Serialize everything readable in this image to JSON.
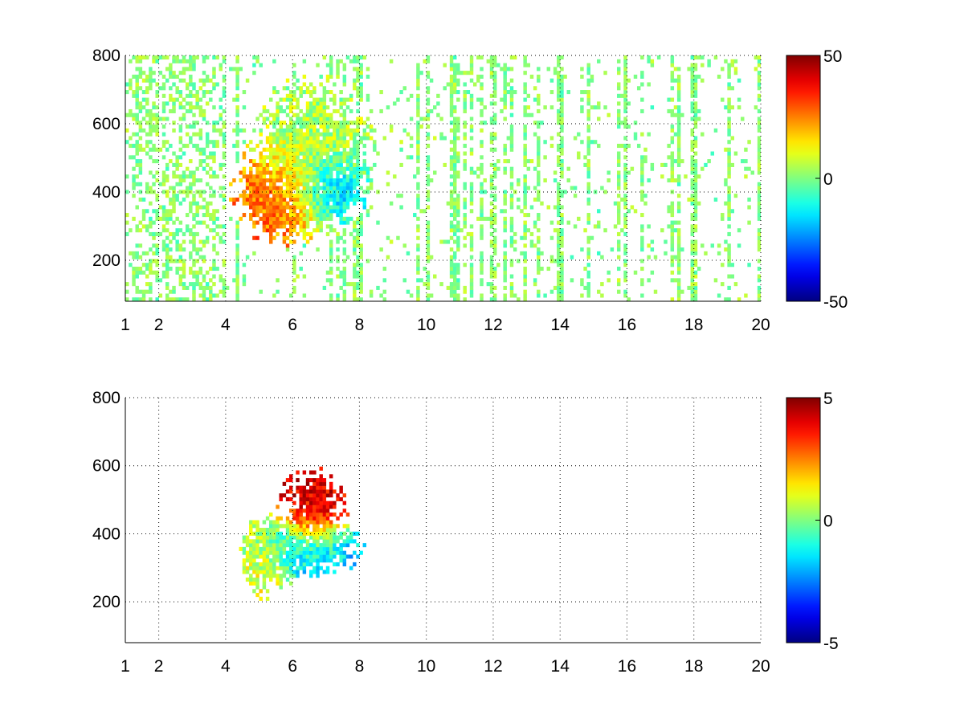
{
  "chart_data": [
    {
      "type": "heatmap",
      "title": "",
      "xlabel": "",
      "ylabel": "",
      "xlim": [
        1,
        20
      ],
      "ylim": [
        80,
        800
      ],
      "x_ticks": [
        1,
        2,
        4,
        6,
        8,
        10,
        12,
        14,
        16,
        18,
        20
      ],
      "y_ticks": [
        200,
        400,
        600,
        800
      ],
      "grid": true,
      "colormap": "jet",
      "colorbar": {
        "min": -50,
        "max": 50,
        "ticks": [
          50,
          0,
          -50
        ]
      },
      "description_of_values": "dense noisy field; positive cluster (~+20 to +30) near x 5-6.5, y 330-480; negative cluster (~-20) near x 6.5-7.8, y 380-460; sparse near-zero vertical streaks elsewhere",
      "clusters": [
        {
          "x": 5.6,
          "y": 390,
          "sx": 0.7,
          "sy": 70,
          "value": 28
        },
        {
          "x": 7.1,
          "y": 410,
          "sx": 0.5,
          "sy": 50,
          "value": -22
        },
        {
          "x": 6.6,
          "y": 520,
          "sx": 0.9,
          "sy": 110,
          "value": 4
        }
      ]
    },
    {
      "type": "heatmap",
      "title": "",
      "xlabel": "",
      "ylabel": "",
      "xlim": [
        1,
        20
      ],
      "ylim": [
        80,
        800
      ],
      "x_ticks": [
        1,
        2,
        4,
        6,
        8,
        10,
        12,
        14,
        16,
        18,
        20
      ],
      "y_ticks": [
        200,
        400,
        600,
        800
      ],
      "grid": true,
      "colormap": "jet",
      "colorbar": {
        "min": -5,
        "max": 5,
        "ticks": [
          5,
          0,
          -5
        ]
      },
      "description_of_values": "mostly empty; single cluster x 4.5-8.5, y 250-600 with positive values (~+3 to +5) around x 6-7, y 380-600 and negative values (~-2) around x 5-8, y 300-420",
      "clusters": [
        {
          "x": 6.6,
          "y": 470,
          "sx": 0.5,
          "sy": 70,
          "value": 4
        },
        {
          "x": 6.5,
          "y": 360,
          "sx": 0.8,
          "sy": 45,
          "value": -2
        },
        {
          "x": 5.2,
          "y": 330,
          "sx": 0.4,
          "sy": 60,
          "value": 1
        }
      ]
    }
  ]
}
